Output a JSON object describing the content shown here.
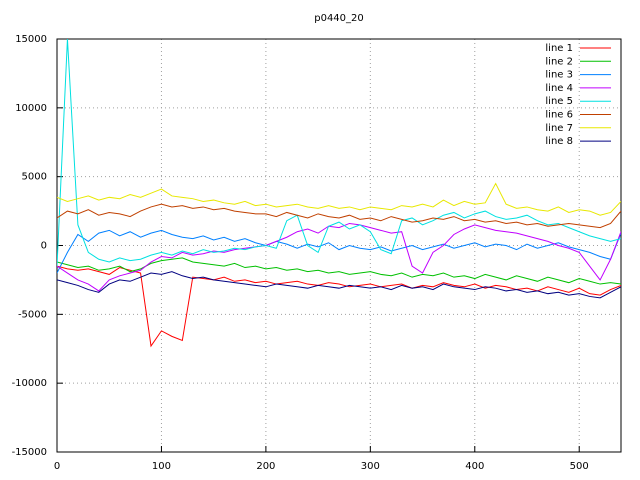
{
  "chart_data": {
    "type": "line",
    "title": "p0440_20",
    "x": [
      0,
      10,
      20,
      30,
      40,
      50,
      60,
      70,
      80,
      90,
      100,
      110,
      120,
      130,
      140,
      150,
      160,
      170,
      180,
      190,
      200,
      210,
      220,
      230,
      240,
      250,
      260,
      270,
      280,
      290,
      300,
      310,
      320,
      330,
      340,
      350,
      360,
      370,
      380,
      390,
      400,
      410,
      420,
      430,
      440,
      450,
      460,
      470,
      480,
      490,
      500,
      510,
      520,
      530,
      540
    ],
    "xlim": [
      0,
      540
    ],
    "xticks": [
      0,
      100,
      200,
      300,
      400,
      500
    ],
    "ylim": [
      -15000,
      15000
    ],
    "yticks": [
      -15000,
      -10000,
      -5000,
      0,
      5000,
      10000,
      15000
    ],
    "grid": true,
    "legend": "top-right",
    "series": [
      {
        "name": "line 1",
        "color": "#ff0000",
        "values": [
          -1500,
          -1700,
          -1800,
          -1700,
          -1900,
          -2100,
          -1600,
          -1800,
          -2000,
          -7300,
          -6200,
          -6600,
          -6900,
          -2300,
          -2400,
          -2500,
          -2300,
          -2600,
          -2500,
          -2700,
          -2600,
          -2800,
          -2700,
          -2600,
          -2800,
          -2900,
          -2700,
          -2800,
          -3000,
          -2900,
          -2800,
          -3000,
          -2900,
          -2800,
          -3100,
          -2900,
          -3000,
          -2700,
          -2900,
          -3000,
          -2800,
          -3100,
          -2900,
          -3000,
          -3200,
          -3100,
          -3300,
          -3000,
          -3200,
          -3400,
          -3100,
          -3500,
          -3600,
          -3200,
          -2900
        ]
      },
      {
        "name": "line 2",
        "color": "#00c000",
        "values": [
          -1200,
          -1400,
          -1600,
          -1500,
          -1800,
          -1700,
          -1500,
          -1900,
          -1700,
          -1300,
          -1100,
          -1000,
          -900,
          -1200,
          -1300,
          -1400,
          -1500,
          -1300,
          -1600,
          -1500,
          -1700,
          -1600,
          -1800,
          -1700,
          -1900,
          -1800,
          -2000,
          -1900,
          -2100,
          -2000,
          -1900,
          -2100,
          -2200,
          -2000,
          -2300,
          -2100,
          -2200,
          -2000,
          -2300,
          -2200,
          -2400,
          -2100,
          -2300,
          -2500,
          -2200,
          -2400,
          -2600,
          -2300,
          -2500,
          -2700,
          -2400,
          -2600,
          -2800,
          -2700,
          -2800
        ]
      },
      {
        "name": "line 3",
        "color": "#0080ff",
        "values": [
          -2000,
          -500,
          800,
          300,
          900,
          1100,
          700,
          1000,
          600,
          900,
          1100,
          800,
          600,
          500,
          700,
          400,
          600,
          300,
          500,
          200,
          0,
          300,
          100,
          -200,
          100,
          -100,
          200,
          -300,
          0,
          -200,
          -300,
          -100,
          -400,
          -200,
          0,
          -300,
          -100,
          100,
          -200,
          0,
          200,
          -100,
          100,
          0,
          -300,
          100,
          -200,
          0,
          200,
          -100,
          -300,
          -500,
          -800,
          -1000,
          900
        ]
      },
      {
        "name": "line 4",
        "color": "#c000ff",
        "values": [
          -1500,
          -2000,
          -2500,
          -2800,
          -3300,
          -2500,
          -2200,
          -2000,
          -1800,
          -1200,
          -800,
          -900,
          -500,
          -700,
          -600,
          -400,
          -500,
          -300,
          -200,
          -100,
          0,
          300,
          600,
          1000,
          1200,
          900,
          1400,
          1300,
          1600,
          1500,
          1300,
          1100,
          900,
          1000,
          -1500,
          -2000,
          -500,
          0,
          800,
          1200,
          1500,
          1300,
          1100,
          1000,
          900,
          700,
          500,
          300,
          0,
          -200,
          -500,
          -1500,
          -2500,
          -1000,
          1000
        ]
      },
      {
        "name": "line 5",
        "color": "#00e0e0",
        "values": [
          -1500,
          15000,
          1500,
          -500,
          -1000,
          -1200,
          -900,
          -1100,
          -1000,
          -700,
          -500,
          -700,
          -400,
          -600,
          -300,
          -500,
          -400,
          -200,
          -300,
          -100,
          0,
          -200,
          1800,
          2200,
          0,
          -500,
          1400,
          1700,
          1200,
          1500,
          1000,
          -300,
          -600,
          1800,
          2000,
          1500,
          1800,
          2200,
          2400,
          2000,
          2300,
          2500,
          2100,
          1900,
          2000,
          2200,
          1800,
          1500,
          1600,
          1300,
          1000,
          700,
          500,
          300,
          500
        ]
      },
      {
        "name": "line 6",
        "color": "#c04000",
        "values": [
          2000,
          2500,
          2300,
          2600,
          2200,
          2400,
          2300,
          2100,
          2500,
          2800,
          3000,
          2800,
          2900,
          2700,
          2800,
          2600,
          2700,
          2500,
          2400,
          2300,
          2300,
          2100,
          2400,
          2200,
          2000,
          2300,
          2100,
          2000,
          2200,
          1900,
          2000,
          1800,
          2100,
          1900,
          1700,
          1800,
          2000,
          1900,
          2100,
          1800,
          1900,
          1700,
          1800,
          1600,
          1700,
          1500,
          1600,
          1400,
          1500,
          1600,
          1500,
          1400,
          1300,
          1600,
          2500
        ]
      },
      {
        "name": "line 7",
        "color": "#e8e800",
        "values": [
          3500,
          3200,
          3400,
          3600,
          3300,
          3500,
          3400,
          3700,
          3500,
          3800,
          4100,
          3600,
          3500,
          3400,
          3200,
          3300,
          3100,
          3000,
          3200,
          2900,
          3000,
          2800,
          2900,
          3000,
          2800,
          2700,
          2900,
          2700,
          2800,
          2600,
          2800,
          2700,
          2600,
          2900,
          2800,
          3000,
          2800,
          3300,
          2900,
          3200,
          3000,
          3100,
          4500,
          3000,
          2700,
          2800,
          2600,
          2500,
          2800,
          2400,
          2600,
          2500,
          2200,
          2400,
          3200
        ]
      },
      {
        "name": "line 8",
        "color": "#000080",
        "values": [
          -2500,
          -2700,
          -2900,
          -3200,
          -3400,
          -2800,
          -2500,
          -2600,
          -2300,
          -2000,
          -2100,
          -1900,
          -2200,
          -2400,
          -2300,
          -2500,
          -2600,
          -2700,
          -2800,
          -2900,
          -3000,
          -2800,
          -2900,
          -3000,
          -3100,
          -2900,
          -3000,
          -3100,
          -2900,
          -3000,
          -3100,
          -3000,
          -3200,
          -2900,
          -3100,
          -3000,
          -3200,
          -2800,
          -3000,
          -3100,
          -3200,
          -3000,
          -3100,
          -3300,
          -3200,
          -3400,
          -3300,
          -3500,
          -3400,
          -3600,
          -3500,
          -3700,
          -3800,
          -3400,
          -3000
        ]
      }
    ]
  }
}
